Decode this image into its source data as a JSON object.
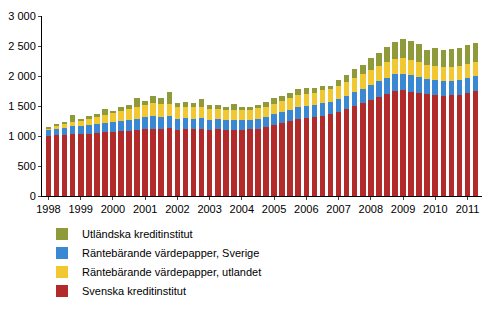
{
  "chart_data": {
    "type": "bar",
    "stacked": true,
    "grid": false,
    "legend": "bottom",
    "categories": [
      "1998",
      null,
      null,
      null,
      "1999",
      null,
      null,
      null,
      "2000",
      null,
      null,
      null,
      "2001",
      null,
      null,
      null,
      "2002",
      null,
      null,
      null,
      "2003",
      null,
      null,
      null,
      "2004",
      null,
      null,
      null,
      "2005",
      null,
      null,
      null,
      "2006",
      null,
      null,
      null,
      "2007",
      null,
      null,
      null,
      "2008",
      null,
      null,
      null,
      "2009",
      null,
      null,
      null,
      "2010",
      null,
      null,
      null,
      "2011",
      null
    ],
    "ylim": [
      0,
      3000
    ],
    "yticks": [
      0,
      500,
      {
        "value": 1000,
        "label": "1 000"
      },
      {
        "value": 1500,
        "label": "1 500"
      },
      {
        "value": 2000,
        "label": "2 000"
      },
      {
        "value": 2500,
        "label": "2 500"
      },
      {
        "value": 3000,
        "label": "3 000"
      }
    ],
    "series": [
      {
        "name": "Svenska kreditinstitut",
        "color": "#b22a2a",
        "values": [
          1000,
          1010,
          1020,
          1030,
          1040,
          1040,
          1050,
          1060,
          1070,
          1080,
          1090,
          1100,
          1110,
          1120,
          1120,
          1130,
          1100,
          1110,
          1110,
          1120,
          1100,
          1110,
          1100,
          1100,
          1100,
          1110,
          1120,
          1150,
          1180,
          1220,
          1250,
          1280,
          1300,
          1320,
          1340,
          1360,
          1400,
          1450,
          1500,
          1550,
          1600,
          1650,
          1700,
          1750,
          1760,
          1740,
          1720,
          1700,
          1680,
          1670,
          1680,
          1690,
          1720,
          1750
        ]
      },
      {
        "name": "Räntebärande värdepapper, Sverige",
        "color": "#3a88d4",
        "values": [
          100,
          110,
          120,
          130,
          130,
          140,
          150,
          150,
          160,
          170,
          180,
          190,
          200,
          210,
          200,
          200,
          190,
          190,
          180,
          180,
          170,
          170,
          160,
          160,
          160,
          160,
          170,
          170,
          180,
          180,
          190,
          200,
          200,
          200,
          210,
          210,
          220,
          220,
          230,
          240,
          250,
          260,
          270,
          280,
          280,
          270,
          260,
          250,
          250,
          250,
          240,
          240,
          250,
          250
        ]
      },
      {
        "name": "Räntebärande värdepapper, utlandet",
        "color": "#f2c832",
        "values": [
          20,
          40,
          60,
          80,
          80,
          100,
          120,
          140,
          150,
          160,
          180,
          200,
          200,
          220,
          210,
          200,
          200,
          190,
          200,
          190,
          180,
          170,
          170,
          170,
          170,
          160,
          170,
          170,
          180,
          190,
          200,
          200,
          200,
          200,
          210,
          210,
          220,
          230,
          240,
          240,
          250,
          250,
          260,
          260,
          260,
          250,
          250,
          240,
          240,
          230,
          230,
          230,
          230,
          230
        ]
      },
      {
        "name": "Utländska kreditinstitut",
        "color": "#8f9a3a",
        "values": [
          20,
          40,
          30,
          110,
          30,
          60,
          50,
          100,
          40,
          80,
          60,
          150,
          80,
          120,
          100,
          200,
          60,
          80,
          60,
          120,
          60,
          70,
          60,
          100,
          50,
          60,
          60,
          80,
          100,
          80,
          80,
          100,
          100,
          80,
          80,
          60,
          100,
          120,
          150,
          160,
          200,
          220,
          250,
          280,
          320,
          330,
          300,
          250,
          300,
          280,
          300,
          310,
          310,
          320
        ]
      }
    ]
  }
}
